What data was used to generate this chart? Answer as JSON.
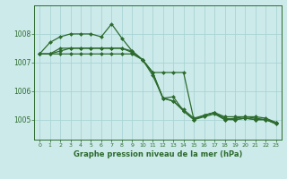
{
  "title": "Graphe pression niveau de la mer (hPa)",
  "bg_color": "#cceaea",
  "grid_color": "#aad4d4",
  "line_color": "#2d6b2d",
  "xlim": [
    -0.5,
    23.5
  ],
  "ylim": [
    1004.3,
    1009.0
  ],
  "xticks": [
    0,
    1,
    2,
    3,
    4,
    5,
    6,
    7,
    8,
    9,
    10,
    11,
    12,
    13,
    14,
    15,
    16,
    17,
    18,
    19,
    20,
    21,
    22,
    23
  ],
  "yticks": [
    1005,
    1006,
    1007,
    1008
  ],
  "series": [
    [
      1007.3,
      1007.3,
      1007.3,
      1007.3,
      1007.3,
      1007.3,
      1007.3,
      1007.3,
      1007.3,
      1007.3,
      1007.1,
      1006.65,
      1006.65,
      1006.65,
      1006.65,
      1005.0,
      1005.15,
      1005.25,
      1005.1,
      1005.1,
      1005.1,
      1005.05,
      1005.0,
      1004.9
    ],
    [
      1007.3,
      1007.7,
      1007.9,
      1008.0,
      1008.0,
      1008.0,
      1007.9,
      1008.35,
      1007.85,
      1007.4,
      1007.1,
      1006.65,
      1005.75,
      1005.8,
      1005.3,
      1005.0,
      1005.15,
      1005.25,
      1005.0,
      1005.05,
      1005.1,
      1005.1,
      1005.05,
      1004.9
    ],
    [
      1007.3,
      1007.3,
      1007.5,
      1007.5,
      1007.5,
      1007.5,
      1007.5,
      1007.5,
      1007.5,
      1007.4,
      1007.1,
      1006.65,
      1005.75,
      1005.65,
      1005.35,
      1005.05,
      1005.15,
      1005.25,
      1005.05,
      1005.0,
      1005.05,
      1005.0,
      1005.0,
      1004.85
    ],
    [
      1007.3,
      1007.3,
      1007.4,
      1007.5,
      1007.5,
      1007.5,
      1007.5,
      1007.5,
      1007.5,
      1007.35,
      1007.1,
      1006.55,
      1005.75,
      1005.65,
      1005.3,
      1005.0,
      1005.1,
      1005.2,
      1005.0,
      1005.0,
      1005.05,
      1005.0,
      1005.0,
      1004.85
    ]
  ],
  "figsize": [
    3.2,
    2.0
  ],
  "dpi": 100
}
